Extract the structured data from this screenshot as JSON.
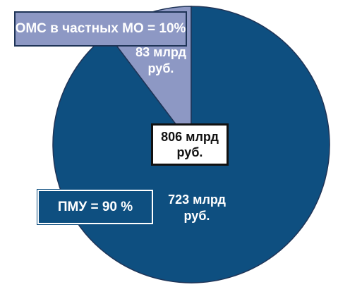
{
  "chart_data": {
    "type": "pie",
    "categories": [
      "ОМС  в частных МО = 10%",
      "ПМУ = 90 %"
    ],
    "values": [
      83,
      723
    ],
    "value_labels": [
      [
        "83 млрд",
        "руб."
      ],
      [
        "723 млрд",
        "руб."
      ]
    ],
    "total_label": [
      "806 млрд",
      "руб."
    ],
    "colors": [
      "#8d98c4",
      "#0e4f80"
    ]
  }
}
